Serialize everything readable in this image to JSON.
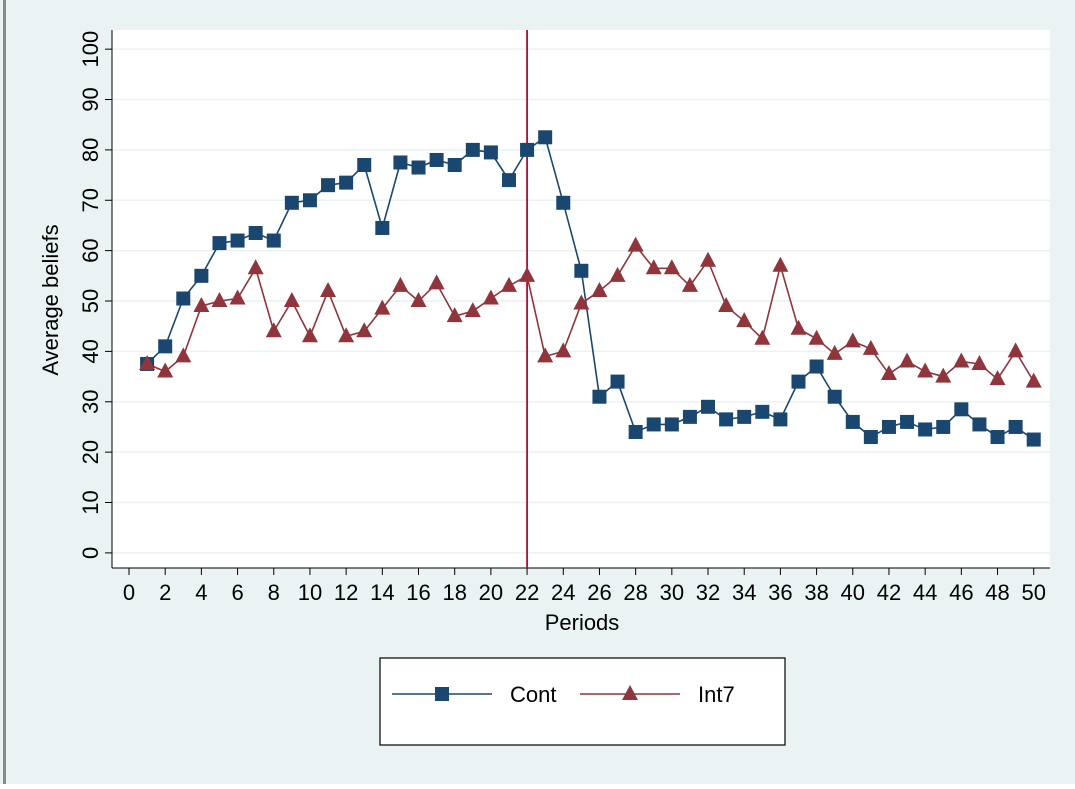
{
  "chart_data": {
    "type": "line",
    "x_label": "Periods",
    "y_label": "Average beliefs",
    "x": [
      1,
      2,
      3,
      4,
      5,
      6,
      7,
      8,
      9,
      10,
      11,
      12,
      13,
      14,
      15,
      16,
      17,
      18,
      19,
      20,
      21,
      22,
      23,
      24,
      25,
      26,
      27,
      28,
      29,
      30,
      31,
      32,
      33,
      34,
      35,
      36,
      37,
      38,
      39,
      40,
      41,
      42,
      43,
      44,
      45,
      46,
      47,
      48,
      49,
      50
    ],
    "series": [
      {
        "name": "Cont",
        "color": "#1a476f",
        "marker": "square",
        "values": [
          37.5,
          41,
          50.5,
          55,
          61.5,
          62,
          63.5,
          62,
          69.5,
          70,
          73,
          73.5,
          77,
          64.5,
          77.5,
          76.5,
          78,
          77,
          80,
          79.5,
          74,
          80,
          82.5,
          69.5,
          56,
          31,
          34,
          24,
          25.5,
          25.5,
          27,
          29,
          26.5,
          27,
          28,
          26.5,
          34,
          37,
          31,
          26,
          23,
          25,
          26,
          24.5,
          25,
          28.5,
          25.5,
          23,
          25,
          22.5
        ]
      },
      {
        "name": "Int7",
        "color": "#90353b",
        "marker": "triangle",
        "values": [
          37.5,
          36,
          39,
          49,
          50,
          50.5,
          56.5,
          44,
          50,
          43,
          52,
          43,
          44,
          48.5,
          53,
          50,
          53.5,
          47,
          48,
          50.5,
          53,
          55,
          39,
          40,
          49.5,
          52,
          55,
          61,
          56.5,
          56.5,
          53,
          58,
          49,
          46,
          42.5,
          57,
          44.5,
          42.5,
          39.5,
          42,
          40.5,
          35.5,
          38,
          36,
          35,
          38,
          37.5,
          34.5,
          40,
          34
        ]
      }
    ],
    "vline": {
      "x": 22,
      "color": "#c10534"
    },
    "xlim": [
      -0.94,
      50.9
    ],
    "ylim": [
      -3,
      103.8
    ],
    "xticks": [
      0,
      2,
      4,
      6,
      8,
      10,
      12,
      14,
      16,
      18,
      20,
      22,
      24,
      26,
      28,
      30,
      32,
      34,
      36,
      38,
      40,
      42,
      44,
      46,
      48,
      50
    ],
    "yticks": [
      0,
      10,
      20,
      30,
      40,
      50,
      60,
      70,
      80,
      90,
      100
    ],
    "grid": true
  }
}
